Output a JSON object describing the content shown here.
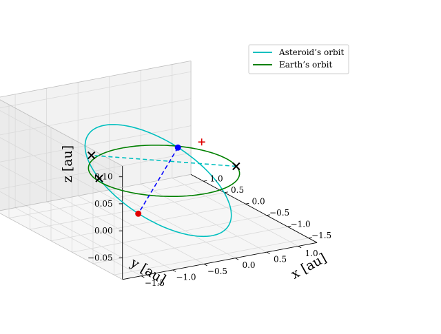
{
  "chart_data": {
    "type": "line3d",
    "title": "",
    "xlabel": "x [au]",
    "ylabel": "y [au]",
    "zlabel": "z [au]",
    "xlim": [
      -1.8,
      1.3
    ],
    "ylim": [
      -1.7,
      1.3
    ],
    "zlim": [
      -0.09,
      0.12
    ],
    "xticks": [
      -1.5,
      -1.0,
      -0.5,
      0.0,
      0.5,
      1.0
    ],
    "xtick_labels": [
      "−1.5",
      "−1.0",
      "−0.5",
      "0.0",
      "0.5",
      "1.0"
    ],
    "yticks": [
      -1.5,
      -1.0,
      -0.5,
      0.0,
      0.5,
      1.0
    ],
    "ytick_labels": [
      "−1.5",
      "−1.0",
      "−0.5",
      "0.0",
      "0.5",
      "1.0"
    ],
    "zticks": [
      -0.05,
      0.0,
      0.05,
      0.1
    ],
    "ztick_labels": [
      "−0.05",
      "0.00",
      "0.05",
      "0.10"
    ],
    "grid": true,
    "legend_position": "top-right",
    "series": [
      {
        "name": "Asteroid’s orbit",
        "kind": "ellipse",
        "color": "#00bfbf",
        "center": [
          -0.28,
          -0.28,
          0.0
        ],
        "semi_major": 1.35,
        "semi_minor": 0.95,
        "rotation_deg": 45,
        "inclination_z": 0.07
      },
      {
        "name": "Earth’s orbit",
        "kind": "circle",
        "color": "#008000",
        "center": [
          0.0,
          0.0,
          0.0
        ],
        "radius": 1.0
      }
    ],
    "lines": [
      {
        "name": "major-axis-line",
        "color": "#0000ff",
        "dash": "blue-dashed",
        "from": [
          0.67,
          0.67,
          0.0
        ],
        "to": [
          -1.24,
          -1.24,
          0.0
        ]
      },
      {
        "name": "node-line",
        "color": "#00bfbf",
        "dash": "cyan-dashed",
        "from": [
          0.95,
          -0.3,
          0.0
        ],
        "to": [
          -0.52,
          0.95,
          0.0
        ]
      }
    ],
    "points": [
      {
        "name": "perihelion-point",
        "marker": "dot",
        "color": "#0000ff",
        "pos": [
          0.67,
          0.67,
          0.0
        ]
      },
      {
        "name": "aphelion-point",
        "marker": "dot",
        "color": "#e00000",
        "pos": [
          -1.24,
          -1.24,
          0.0
        ]
      },
      {
        "name": "node-marker-1",
        "marker": "x",
        "color": "#000000",
        "pos": [
          0.95,
          -0.3,
          0.0
        ]
      },
      {
        "name": "node-marker-2",
        "marker": "x",
        "color": "#000000",
        "pos": [
          -0.52,
          0.95,
          0.0
        ]
      },
      {
        "name": "intersection-marker",
        "marker": "x",
        "color": "#000000",
        "pos": [
          -0.93,
          0.15,
          0.0
        ]
      },
      {
        "name": "focus-marker",
        "marker": "plus",
        "color": "#e00000",
        "pos": [
          0.6,
          0.0,
          0.04
        ]
      }
    ]
  }
}
